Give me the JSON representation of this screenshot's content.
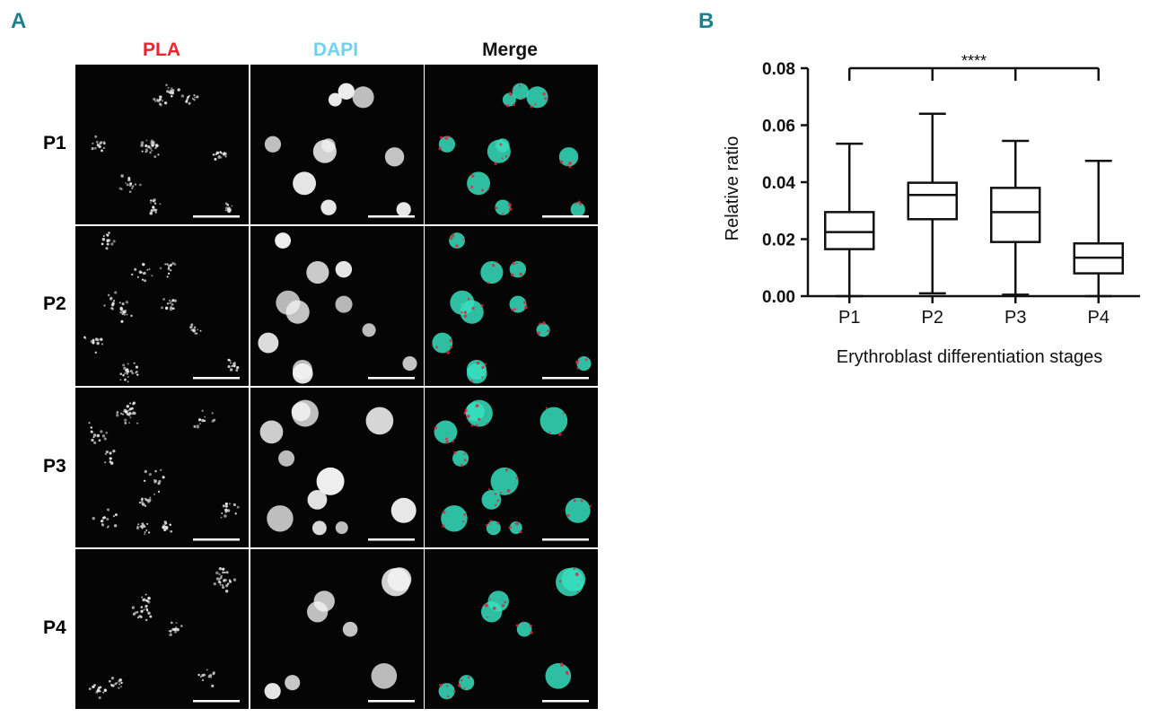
{
  "figure": {
    "panel_a": {
      "letter": "A",
      "column_headers": [
        {
          "label": "PLA",
          "color": "#e8262d"
        },
        {
          "label": "DAPI",
          "color": "#6fd3f0"
        },
        {
          "label": "Merge",
          "color": "#111111"
        }
      ],
      "row_labels": [
        "P1",
        "P2",
        "P3",
        "P4"
      ],
      "channel_colors": {
        "pla": "#e8e8e8",
        "dapi": "#f2f2f2",
        "merge_nucleus": "#36e0bf",
        "merge_pla": "#e0243a"
      }
    },
    "panel_b": {
      "letter": "B",
      "significance": "****"
    }
  },
  "chart_data": {
    "type": "box",
    "categories": [
      "P1",
      "P2",
      "P3",
      "P4"
    ],
    "boxes": [
      {
        "min": 0.0,
        "q1": 0.0165,
        "median": 0.0225,
        "q3": 0.0295,
        "max": 0.0535
      },
      {
        "min": 0.001,
        "q1": 0.027,
        "median": 0.0355,
        "q3": 0.0398,
        "max": 0.064
      },
      {
        "min": 0.0005,
        "q1": 0.019,
        "median": 0.0295,
        "q3": 0.038,
        "max": 0.0545
      },
      {
        "min": 0.0,
        "q1": 0.008,
        "median": 0.0135,
        "q3": 0.0185,
        "max": 0.0475
      }
    ],
    "xlabel": "Erythroblast differentiation stages",
    "ylabel": "Relative ratio",
    "yticks": [
      "0.00",
      "0.02",
      "0.04",
      "0.06",
      "0.08"
    ],
    "ylim": [
      0,
      0.08
    ],
    "annotation": "****"
  }
}
